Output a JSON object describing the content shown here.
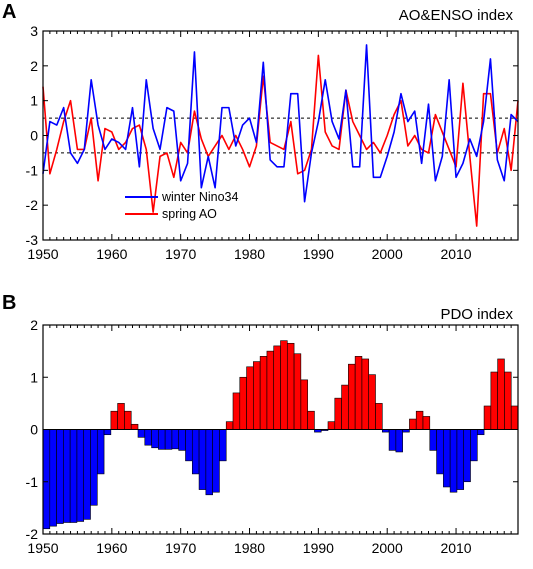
{
  "chart_data": [
    {
      "panel": "A",
      "type": "line",
      "title": "AO&ENSO index",
      "xlim": [
        1950,
        2019
      ],
      "ylim": [
        -3,
        3
      ],
      "xticks": [
        1950,
        1960,
        1970,
        1980,
        1990,
        2000,
        2010
      ],
      "yticks": [
        -3,
        -2,
        -1,
        0,
        1,
        2,
        3
      ],
      "reference_lines": [
        0.5,
        -0.5
      ],
      "legend": {
        "placement": "bottom-left"
      },
      "x": [
        1950,
        1951,
        1952,
        1953,
        1954,
        1955,
        1956,
        1957,
        1958,
        1959,
        1960,
        1961,
        1962,
        1963,
        1964,
        1965,
        1966,
        1967,
        1968,
        1969,
        1970,
        1971,
        1972,
        1973,
        1974,
        1975,
        1976,
        1977,
        1978,
        1979,
        1980,
        1981,
        1982,
        1983,
        1984,
        1985,
        1986,
        1987,
        1988,
        1989,
        1990,
        1991,
        1992,
        1993,
        1994,
        1995,
        1996,
        1997,
        1998,
        1999,
        2000,
        2001,
        2002,
        2003,
        2004,
        2005,
        2006,
        2007,
        2008,
        2009,
        2010,
        2011,
        2012,
        2013,
        2014,
        2015,
        2016,
        2017,
        2018,
        2019
      ],
      "series": [
        {
          "name": "winter Nino34",
          "color": "#0000ff",
          "values": [
            -1.1,
            0.4,
            0.3,
            0.8,
            -0.5,
            -0.8,
            -0.4,
            1.6,
            0.3,
            -0.4,
            -0.1,
            -0.2,
            -0.4,
            0.8,
            -0.9,
            1.6,
            0.2,
            -0.4,
            0.8,
            0.7,
            -1.3,
            -0.8,
            2.4,
            -1.5,
            -0.6,
            -1.5,
            0.8,
            0.8,
            -0.3,
            0.3,
            0.5,
            -0.2,
            2.1,
            -0.7,
            -0.9,
            -0.9,
            1.2,
            1.2,
            -1.9,
            -0.5,
            0.4,
            1.6,
            0.4,
            -0.1,
            1.3,
            -0.9,
            -0.9,
            2.6,
            -1.2,
            -1.2,
            -0.6,
            0.1,
            1.2,
            0.4,
            0.7,
            -0.8,
            0.9,
            -1.3,
            -0.6,
            1.6,
            -1.2,
            -0.8,
            -0.1,
            -0.6,
            0.4,
            2.2,
            -0.7,
            -1.3,
            0.6,
            0.4
          ]
        },
        {
          "name": "spring AO",
          "color": "#ff0000",
          "values": [
            1.4,
            -1.1,
            -0.4,
            0.4,
            1.0,
            -0.4,
            -0.4,
            0.5,
            -1.3,
            0.2,
            0.1,
            -0.4,
            -0.2,
            0.2,
            0.3,
            -0.4,
            -2.2,
            -0.6,
            -0.5,
            -1.2,
            -0.2,
            -0.5,
            0.7,
            -0.1,
            -0.6,
            -0.3,
            0.0,
            -0.4,
            0.0,
            -0.4,
            -0.9,
            -0.3,
            1.7,
            -0.2,
            -0.3,
            -0.4,
            0.4,
            -1.1,
            -1.0,
            -0.4,
            2.3,
            0.1,
            -0.3,
            -0.4,
            1.3,
            0.4,
            0.0,
            -0.4,
            -0.2,
            -0.5,
            0.0,
            0.6,
            1.0,
            -0.3,
            0.0,
            -0.4,
            -0.5,
            0.6,
            0.1,
            -0.4,
            -0.9,
            1.5,
            -0.6,
            -2.6,
            1.2,
            1.2,
            -0.5,
            0.2,
            -1.0,
            1.0
          ]
        }
      ]
    },
    {
      "panel": "B",
      "type": "bar",
      "title": "PDO index",
      "xlim": [
        1950,
        2019
      ],
      "ylim": [
        -2,
        2
      ],
      "xticks": [
        1950,
        1960,
        1970,
        1980,
        1990,
        2000,
        2010
      ],
      "yticks": [
        -2,
        -1,
        0,
        1,
        2
      ],
      "positive_color": "#ff0000",
      "negative_color": "#0000ff",
      "x": [
        1950,
        1951,
        1952,
        1953,
        1954,
        1955,
        1956,
        1957,
        1958,
        1959,
        1960,
        1961,
        1962,
        1963,
        1964,
        1965,
        1966,
        1967,
        1968,
        1969,
        1970,
        1971,
        1972,
        1973,
        1974,
        1975,
        1976,
        1977,
        1978,
        1979,
        1980,
        1981,
        1982,
        1983,
        1984,
        1985,
        1986,
        1987,
        1988,
        1989,
        1990,
        1991,
        1992,
        1993,
        1994,
        1995,
        1996,
        1997,
        1998,
        1999,
        2000,
        2001,
        2002,
        2003,
        2004,
        2005,
        2006,
        2007,
        2008,
        2009,
        2010,
        2011,
        2012,
        2013,
        2014,
        2015,
        2016,
        2017,
        2018,
        2019
      ],
      "values": [
        -1.9,
        -1.85,
        -1.8,
        -1.78,
        -1.78,
        -1.76,
        -1.72,
        -1.45,
        -0.85,
        -0.1,
        0.35,
        0.5,
        0.35,
        0.1,
        -0.15,
        -0.3,
        -0.35,
        -0.38,
        -0.38,
        -0.37,
        -0.4,
        -0.6,
        -0.85,
        -1.15,
        -1.25,
        -1.2,
        -0.6,
        0.15,
        0.7,
        1.0,
        1.2,
        1.3,
        1.4,
        1.5,
        1.6,
        1.7,
        1.65,
        1.45,
        0.95,
        0.35,
        -0.05,
        -0.02,
        0.15,
        0.6,
        0.85,
        1.25,
        1.4,
        1.35,
        1.05,
        0.5,
        -0.05,
        -0.4,
        -0.43,
        -0.05,
        0.2,
        0.35,
        0.25,
        -0.4,
        -0.85,
        -1.1,
        -1.2,
        -1.15,
        -1.0,
        -0.6,
        -0.1,
        0.45,
        1.1,
        1.35,
        1.1,
        0.45
      ]
    }
  ]
}
